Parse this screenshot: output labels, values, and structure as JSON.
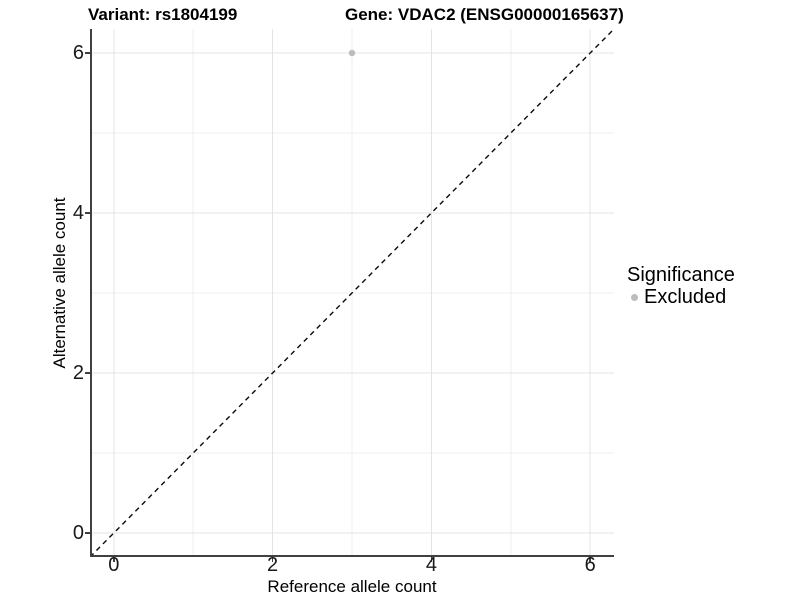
{
  "header": {
    "variant_title": "Variant: rs1804199",
    "gene_title": "Gene: VDAC2 (ENSG00000165637)"
  },
  "chart_data": {
    "type": "scatter",
    "title_left": "Variant: rs1804199",
    "title_right": "Gene: VDAC2 (ENSG00000165637)",
    "xlabel": "Reference allele count",
    "ylabel": "Alternative allele count",
    "xlim": [
      -0.3,
      6.3
    ],
    "ylim": [
      -0.3,
      6.3
    ],
    "xticks": [
      0,
      2,
      4,
      6
    ],
    "yticks": [
      0,
      2,
      4,
      6
    ],
    "minor_ticks": [
      1,
      3,
      5
    ],
    "grid": "major and minor, light gray on white",
    "points": [
      {
        "x": 3,
        "y": 6,
        "series": "Excluded"
      }
    ],
    "reference_line": {
      "type": "identity-diagonal",
      "style": "dashed",
      "from": [
        -0.3,
        -0.3
      ],
      "to": [
        6.3,
        6.3
      ]
    },
    "legend": {
      "title": "Significance",
      "position": "right",
      "entries": [
        {
          "label": "Excluded",
          "color": "#bcbcbc"
        }
      ]
    }
  },
  "colors": {
    "point": "#bcbcbc",
    "grid_major": "#e4e4e4",
    "grid_minor": "#efefef",
    "axis_line": "#404040",
    "diagonal": "#0a0a0a",
    "text": "#000000",
    "background": "#ffffff"
  }
}
